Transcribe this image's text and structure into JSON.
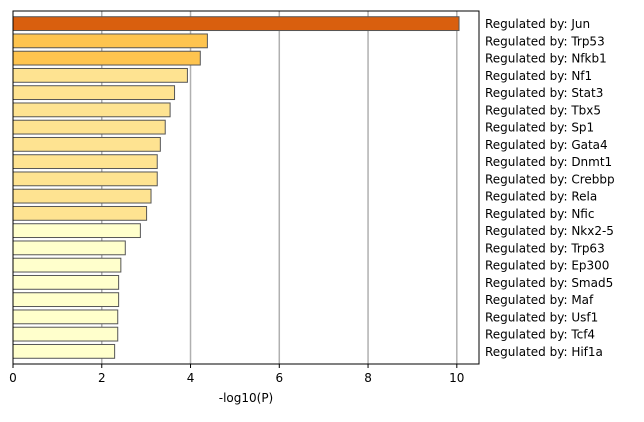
{
  "chart_data": {
    "type": "bar",
    "orientation": "horizontal",
    "title": "",
    "xlabel": "-log10(P)",
    "ylabel": "",
    "xlim": [
      0,
      10.5
    ],
    "xticks": [
      0,
      2,
      4,
      6,
      8,
      10
    ],
    "grid": "vertical",
    "label_side": "right",
    "colors": {
      "top": "#d95f0e",
      "high": "#fec44f",
      "mid": "#fee391",
      "low": "#ffffcc",
      "edge": "#555555",
      "grid": "#b0b0b0"
    },
    "categories": [
      "Regulated by: Jun",
      "Regulated by: Trp53",
      "Regulated by: Nfkb1",
      "Regulated by: Nf1",
      "Regulated by: Stat3",
      "Regulated by: Tbx5",
      "Regulated by: Sp1",
      "Regulated by: Gata4",
      "Regulated by: Dnmt1",
      "Regulated by: Crebbp",
      "Regulated by: Rela",
      "Regulated by: Nfic",
      "Regulated by: Nkx2-5",
      "Regulated by: Trp63",
      "Regulated by: Ep300",
      "Regulated by: Smad5",
      "Regulated by: Maf",
      "Regulated by: Usf1",
      "Regulated by: Tcf4",
      "Regulated by: Hif1a"
    ],
    "values": [
      10.05,
      4.38,
      4.22,
      3.93,
      3.64,
      3.54,
      3.43,
      3.32,
      3.25,
      3.25,
      3.11,
      3.01,
      2.87,
      2.53,
      2.43,
      2.38,
      2.38,
      2.36,
      2.36,
      2.29
    ],
    "color_keys": [
      "top",
      "high",
      "high",
      "mid",
      "mid",
      "mid",
      "mid",
      "mid",
      "mid",
      "mid",
      "mid",
      "mid",
      "low",
      "low",
      "low",
      "low",
      "low",
      "low",
      "low",
      "low"
    ]
  }
}
